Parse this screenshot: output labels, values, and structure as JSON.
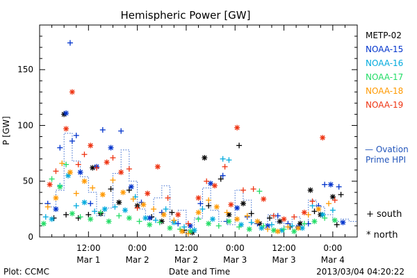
{
  "chart_data": {
    "type": "scatter",
    "title": "Hemispheric Power [GW]",
    "xlabel": "Date and Time",
    "ylabel": "P [GW]",
    "xlim": [
      0,
      78
    ],
    "ylim": [
      0,
      190
    ],
    "x_unit": "hours from 2013-03-01 00:00 UT",
    "x_ticks": [
      {
        "x": 12,
        "label": "12:00",
        "sublabel": "Mar 1"
      },
      {
        "x": 24,
        "label": "0:00",
        "sublabel": "Mar 2"
      },
      {
        "x": 36,
        "label": "12:00",
        "sublabel": "Mar 2"
      },
      {
        "x": 48,
        "label": "0:00",
        "sublabel": "Mar 3"
      },
      {
        "x": 60,
        "label": "12:00",
        "sublabel": "Mar 3"
      },
      {
        "x": 72,
        "label": "0:00",
        "sublabel": "Mar 4"
      }
    ],
    "y_ticks": [
      0,
      50,
      100,
      150
    ],
    "markers": {
      "south": "+",
      "north": "*"
    },
    "marker_legend": [
      {
        "symbol": "+",
        "label": "south"
      },
      {
        "symbol": "*",
        "label": "north"
      }
    ],
    "series": [
      {
        "name": "METP-02",
        "color": "#000000",
        "points": [
          [
            3.5,
            17,
            "+"
          ],
          [
            6,
            110,
            "*"
          ],
          [
            6.5,
            20,
            "+"
          ],
          [
            9.5,
            17,
            "+"
          ],
          [
            12,
            20,
            "+"
          ],
          [
            13,
            62,
            "*"
          ],
          [
            15,
            21,
            "*"
          ],
          [
            17.5,
            43,
            "+"
          ],
          [
            19.5,
            31,
            "*"
          ],
          [
            22,
            42,
            "+"
          ],
          [
            24,
            28,
            "*"
          ],
          [
            27.5,
            18,
            "+"
          ],
          [
            30,
            14,
            "*"
          ],
          [
            32.5,
            22,
            "+"
          ],
          [
            35.5,
            6,
            "+"
          ],
          [
            37.5,
            4,
            "*"
          ],
          [
            40.5,
            71,
            "*"
          ],
          [
            41.5,
            28,
            "+"
          ],
          [
            44.5,
            52,
            "+"
          ],
          [
            46.5,
            20,
            "*"
          ],
          [
            49,
            82,
            "+"
          ],
          [
            50,
            30,
            "*"
          ],
          [
            52,
            21,
            "+"
          ],
          [
            54,
            12,
            "*"
          ],
          [
            56.5,
            17,
            "+"
          ],
          [
            59,
            14,
            "*"
          ],
          [
            61.5,
            9,
            "+"
          ],
          [
            64,
            12,
            "*"
          ],
          [
            66.5,
            42,
            "*"
          ],
          [
            67.5,
            23,
            "+"
          ],
          [
            69,
            20,
            "*"
          ],
          [
            72,
            36,
            "*"
          ],
          [
            73,
            11,
            "+"
          ],
          [
            74,
            38,
            "+"
          ]
        ]
      },
      {
        "name": "NOAA-15",
        "color": "#0033cc",
        "points": [
          [
            2,
            30,
            "+"
          ],
          [
            4,
            25,
            "*"
          ],
          [
            5,
            80,
            "+"
          ],
          [
            6.5,
            111,
            "*"
          ],
          [
            7.5,
            174,
            "+"
          ],
          [
            8,
            86,
            "+"
          ],
          [
            9,
            91,
            "+"
          ],
          [
            10,
            58,
            "*"
          ],
          [
            12.5,
            30,
            "+"
          ],
          [
            14,
            63,
            "*"
          ],
          [
            15.5,
            96,
            "+"
          ],
          [
            17.5,
            80,
            "*"
          ],
          [
            20,
            95,
            "+"
          ],
          [
            22.5,
            45,
            "*"
          ],
          [
            25,
            31,
            "+"
          ],
          [
            27,
            17,
            "*"
          ],
          [
            30,
            22,
            "+"
          ],
          [
            34,
            12,
            "+"
          ],
          [
            37,
            10,
            "*"
          ],
          [
            39.5,
            30,
            "+"
          ],
          [
            42,
            48,
            "*"
          ],
          [
            45,
            55,
            "+"
          ],
          [
            46,
            14,
            "+"
          ],
          [
            48.5,
            26,
            "*"
          ],
          [
            51,
            18,
            "+"
          ],
          [
            53.5,
            12,
            "+"
          ],
          [
            56,
            10,
            "*"
          ],
          [
            58.5,
            19,
            "+"
          ],
          [
            61,
            12,
            "+"
          ],
          [
            63.5,
            9,
            "*"
          ],
          [
            66,
            12,
            "+"
          ],
          [
            68.5,
            28,
            "+"
          ],
          [
            70,
            47,
            "+"
          ],
          [
            71.5,
            47,
            "*"
          ],
          [
            73.5,
            45,
            "+"
          ],
          [
            74.5,
            13,
            "*"
          ]
        ]
      },
      {
        "name": "NOAA-16",
        "color": "#00aadd",
        "points": [
          [
            1.5,
            18,
            "+"
          ],
          [
            3,
            16,
            "*"
          ],
          [
            5,
            46,
            "+"
          ],
          [
            7,
            55,
            "*"
          ],
          [
            9,
            28,
            "+"
          ],
          [
            11,
            31,
            "*"
          ],
          [
            13.5,
            23,
            "+"
          ],
          [
            16,
            25,
            "*"
          ],
          [
            18.5,
            27,
            "+"
          ],
          [
            21,
            24,
            "*"
          ],
          [
            23.5,
            36,
            "+"
          ],
          [
            26,
            17,
            "*"
          ],
          [
            28.5,
            15,
            "+"
          ],
          [
            31,
            25,
            "+"
          ],
          [
            33,
            13,
            "*"
          ],
          [
            35.5,
            9,
            "+"
          ],
          [
            38,
            6,
            "*"
          ],
          [
            40,
            25,
            "+"
          ],
          [
            42.5,
            16,
            "*"
          ],
          [
            45,
            70,
            "+"
          ],
          [
            46.5,
            69,
            "+"
          ],
          [
            49.5,
            11,
            "*"
          ],
          [
            52,
            13,
            "+"
          ],
          [
            54.5,
            8,
            "*"
          ],
          [
            57,
            11,
            "+"
          ],
          [
            59.5,
            6,
            "*"
          ],
          [
            62,
            10,
            "+"
          ],
          [
            64.5,
            8,
            "*"
          ],
          [
            67,
            28,
            "+"
          ],
          [
            69.5,
            20,
            "*"
          ],
          [
            72,
            24,
            "+"
          ]
        ]
      },
      {
        "name": "NOAA-17",
        "color": "#22dd66",
        "points": [
          [
            1,
            12,
            "*"
          ],
          [
            3,
            52,
            "+"
          ],
          [
            5,
            45,
            "*"
          ],
          [
            6.5,
            65,
            "+"
          ],
          [
            8,
            21,
            "*"
          ],
          [
            10,
            18,
            "+"
          ],
          [
            12.5,
            16,
            "*"
          ],
          [
            15,
            22,
            "+"
          ],
          [
            17,
            14,
            "*"
          ],
          [
            19.5,
            19,
            "+"
          ],
          [
            22,
            17,
            "*"
          ],
          [
            24.5,
            14,
            "+"
          ],
          [
            27,
            11,
            "*"
          ],
          [
            29.5,
            13,
            "+"
          ],
          [
            32,
            8,
            "*"
          ],
          [
            34.5,
            7,
            "+"
          ],
          [
            37,
            5,
            "*"
          ],
          [
            39,
            16,
            "+"
          ],
          [
            41.5,
            12,
            "*"
          ],
          [
            44,
            10,
            "+"
          ],
          [
            46.5,
            14,
            "*"
          ],
          [
            49,
            9,
            "+"
          ],
          [
            51.5,
            7,
            "*"
          ],
          [
            54,
            41,
            "+"
          ],
          [
            55,
            10,
            "+"
          ],
          [
            57.5,
            6,
            "*"
          ],
          [
            60,
            7,
            "+"
          ],
          [
            62.5,
            5,
            "*"
          ],
          [
            65,
            12,
            "+"
          ],
          [
            67.5,
            14,
            "*"
          ],
          [
            70,
            17,
            "+"
          ],
          [
            72.5,
            15,
            "*"
          ]
        ]
      },
      {
        "name": "NOAA-18",
        "color": "#ff9900",
        "points": [
          [
            2,
            27,
            "+"
          ],
          [
            4,
            35,
            "*"
          ],
          [
            5.5,
            66,
            "+"
          ],
          [
            7.5,
            58,
            "*"
          ],
          [
            9,
            39,
            "+"
          ],
          [
            11,
            50,
            "*"
          ],
          [
            13,
            44,
            "+"
          ],
          [
            15.5,
            38,
            "*"
          ],
          [
            18,
            51,
            "+"
          ],
          [
            20.5,
            40,
            "*"
          ],
          [
            23,
            34,
            "+"
          ],
          [
            25.5,
            29,
            "*"
          ],
          [
            28,
            25,
            "+"
          ],
          [
            30.5,
            20,
            "*"
          ],
          [
            33,
            15,
            "+"
          ],
          [
            35,
            5,
            "*"
          ],
          [
            36.5,
            3,
            "+"
          ],
          [
            39,
            22,
            "*"
          ],
          [
            41.5,
            33,
            "+"
          ],
          [
            43.5,
            27,
            "*"
          ],
          [
            46,
            22,
            "+"
          ],
          [
            48.5,
            16,
            "*"
          ],
          [
            51,
            19,
            "+"
          ],
          [
            53.5,
            14,
            "*"
          ],
          [
            56,
            7,
            "+"
          ],
          [
            58.5,
            5,
            "*"
          ],
          [
            61,
            9,
            "+"
          ],
          [
            63.5,
            8,
            "*"
          ],
          [
            66,
            20,
            "+"
          ],
          [
            68.5,
            25,
            "*"
          ],
          [
            71,
            30,
            "+"
          ]
        ]
      },
      {
        "name": "NOAA-19",
        "color": "#ee3311",
        "points": [
          [
            2.5,
            47,
            "*"
          ],
          [
            4,
            59,
            "+"
          ],
          [
            6.5,
            97,
            "*"
          ],
          [
            8,
            130,
            "*"
          ],
          [
            9.5,
            65,
            "+"
          ],
          [
            11,
            74,
            "+"
          ],
          [
            12.5,
            82,
            "*"
          ],
          [
            14,
            62,
            "+"
          ],
          [
            16.5,
            67,
            "*"
          ],
          [
            18,
            71,
            "+"
          ],
          [
            20,
            58,
            "*"
          ],
          [
            22,
            61,
            "+"
          ],
          [
            24,
            26,
            "+"
          ],
          [
            26.5,
            39,
            "*"
          ],
          [
            29,
            63,
            "*"
          ],
          [
            31.5,
            35,
            "+"
          ],
          [
            34,
            20,
            "*"
          ],
          [
            36.5,
            12,
            "+"
          ],
          [
            39,
            35,
            "*"
          ],
          [
            41,
            50,
            "+"
          ],
          [
            43,
            46,
            "*"
          ],
          [
            45.5,
            63,
            "+"
          ],
          [
            47,
            29,
            "*"
          ],
          [
            48.5,
            98,
            "*"
          ],
          [
            50,
            42,
            "+"
          ],
          [
            52.5,
            43,
            "+"
          ],
          [
            55,
            34,
            "*"
          ],
          [
            57.5,
            19,
            "+"
          ],
          [
            60,
            16,
            "*"
          ],
          [
            62.5,
            18,
            "+"
          ],
          [
            65,
            22,
            "*"
          ],
          [
            67,
            32,
            "+"
          ],
          [
            69.5,
            89,
            "*"
          ],
          [
            72.5,
            33,
            "+"
          ]
        ]
      }
    ],
    "ovation": {
      "label_line1": "— Ovation",
      "label_line2": "Prime HPI",
      "color": "#3366cc",
      "x": [
        0,
        2,
        2,
        4,
        4,
        6,
        6,
        8,
        8,
        10,
        10,
        12,
        12,
        14,
        14,
        16,
        16,
        18,
        18,
        20,
        20,
        22,
        22,
        24,
        24,
        26,
        26,
        28,
        28,
        30,
        30,
        32,
        32,
        34,
        34,
        36,
        36,
        38,
        38,
        40,
        40,
        42,
        42,
        44,
        44,
        46,
        46,
        48,
        48,
        50,
        50,
        52,
        52,
        54,
        54,
        56,
        56,
        58,
        58,
        60,
        60,
        62,
        62,
        64,
        64,
        66,
        66,
        68,
        68,
        70,
        70,
        72,
        72,
        74,
        74,
        76,
        76,
        78
      ],
      "y": [
        30,
        30,
        27,
        27,
        42,
        42,
        93,
        93,
        68,
        68,
        54,
        54,
        40,
        40,
        19,
        19,
        26,
        26,
        57,
        57,
        78,
        78,
        50,
        50,
        25,
        25,
        17,
        17,
        35,
        35,
        46,
        46,
        13,
        13,
        24,
        24,
        6,
        6,
        17,
        17,
        44,
        44,
        24,
        24,
        14,
        14,
        11,
        11,
        42,
        42,
        33,
        33,
        12,
        12,
        8,
        8,
        20,
        20,
        13,
        13,
        9,
        9,
        18,
        18,
        11,
        11,
        33,
        33,
        27,
        27,
        20,
        20,
        14,
        14,
        16,
        16,
        14,
        14
      ]
    }
  },
  "footer": {
    "left": "Plot: CCMC",
    "center": "Date and Time",
    "right": "2013/03/04 04:20:22"
  }
}
